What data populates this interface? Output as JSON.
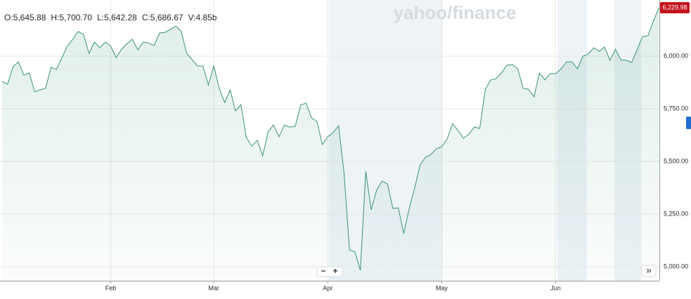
{
  "chart_data": {
    "type": "area",
    "brand": "yahoo/finance",
    "ohlc": [
      "O:5,645.88",
      "H:5,700.70",
      "L:5,642.28",
      "C:5,686.67",
      "V:4.85b"
    ],
    "last_label": "6,229.98",
    "zoom_out": "−",
    "zoom_in": "+",
    "expand": "»",
    "color": "#3a9477",
    "values": [
      5880,
      5867,
      5950,
      5973,
      5910,
      5920,
      5830,
      5840,
      5847,
      5947,
      5937,
      5993,
      6047,
      6080,
      6117,
      6103,
      6013,
      6067,
      6040,
      6067,
      6047,
      5993,
      6033,
      6060,
      6080,
      6030,
      6067,
      6063,
      6050,
      6110,
      6113,
      6127,
      6143,
      6117,
      6013,
      5983,
      5953,
      5953,
      5863,
      5953,
      5847,
      5780,
      5840,
      5740,
      5770,
      5613,
      5573,
      5600,
      5527,
      5640,
      5673,
      5617,
      5673,
      5663,
      5667,
      5767,
      5777,
      5707,
      5690,
      5580,
      5617,
      5637,
      5670,
      5443,
      5080,
      5070,
      4983,
      5453,
      5270,
      5363,
      5407,
      5393,
      5277,
      5280,
      5157,
      5277,
      5373,
      5483,
      5520,
      5533,
      5560,
      5570,
      5607,
      5680,
      5647,
      5610,
      5630,
      5663,
      5657,
      5840,
      5887,
      5893,
      5920,
      5957,
      5960,
      5940,
      5847,
      5843,
      5807,
      5920,
      5887,
      5917,
      5917,
      5940,
      5973,
      5973,
      5940,
      6000,
      6010,
      6040,
      6023,
      6043,
      5980,
      6033,
      5983,
      5980,
      5970,
      6030,
      6093,
      6097,
      6167,
      6229.98
    ],
    "xlim": [
      -0.4,
      121.1
    ],
    "xticks": [
      {
        "value": 20,
        "label": "Feb"
      },
      {
        "value": 39,
        "label": "Mar"
      },
      {
        "value": 60,
        "label": "Apr"
      },
      {
        "value": 81,
        "label": "May"
      },
      {
        "value": 102,
        "label": "Jun"
      }
    ],
    "ylim": [
      4933.33,
      6266.67
    ],
    "yticks": [
      {
        "value": 5000,
        "label": "5,000.00"
      },
      {
        "value": 5250,
        "label": "5,250.00"
      },
      {
        "value": 5500,
        "label": "5,500.00"
      },
      {
        "value": 5750,
        "label": "5,750.00"
      },
      {
        "value": 6000,
        "label": "6,000.00"
      }
    ],
    "grid": true
  }
}
